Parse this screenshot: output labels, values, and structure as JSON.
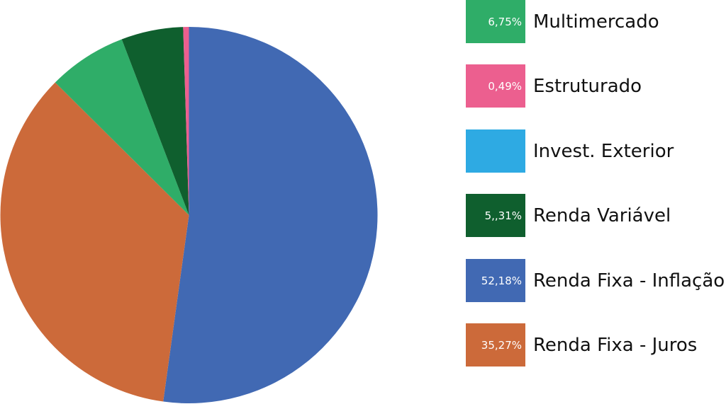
{
  "chart_data": {
    "type": "pie",
    "title": "",
    "start": "top",
    "direction": "clockwise",
    "slices": [
      {
        "name": "Renda Fixa - Inflação",
        "value": 52.18,
        "color": "#4169b3"
      },
      {
        "name": "Renda Fixa - Juros",
        "value": 35.27,
        "color": "#cc6a3a"
      },
      {
        "name": "Multimercado",
        "value": 6.75,
        "color": "#2fad68"
      },
      {
        "name": "Renda Variável",
        "value": 5.31,
        "color": "#0f5f2e"
      },
      {
        "name": "Estruturado",
        "value": 0.49,
        "color": "#ec5f8f"
      },
      {
        "name": "Invest. Exterior",
        "value": 0,
        "color": "#2eaae3"
      }
    ],
    "legend_position": "right",
    "legend": [
      {
        "label": "Multimercado",
        "value_text": "6,75%",
        "color": "#2fad68"
      },
      {
        "label": "Estruturado",
        "value_text": "0,49%",
        "color": "#ec5f8f"
      },
      {
        "label": "Invest. Exterior",
        "value_text": "",
        "color": "#2eaae3"
      },
      {
        "label": "Renda Variável",
        "value_text": "5,,31%",
        "color": "#0f5f2e"
      },
      {
        "label": "Renda Fixa - Inflação",
        "value_text": "52,18%",
        "color": "#4169b3"
      },
      {
        "label": "Renda Fixa - Juros",
        "value_text": "35,27%",
        "color": "#cc6a3a"
      }
    ]
  }
}
